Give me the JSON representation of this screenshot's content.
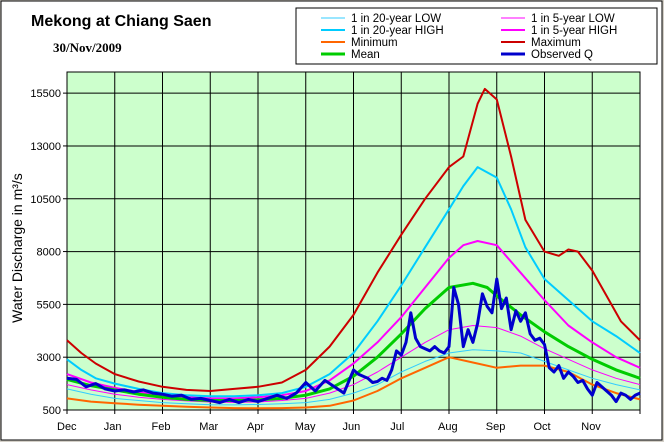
{
  "chart_data": {
    "type": "line",
    "title": "Mekong at Chiang Saen",
    "subtitle": "30/Nov/2009",
    "ylabel": "Water Discharge in m³/s",
    "xlabel": "",
    "ylim": [
      500,
      16500
    ],
    "yticks": [
      500,
      3000,
      5500,
      8000,
      10500,
      13000,
      15500
    ],
    "x_tick_labels": [
      "Dec",
      "Jan",
      "Feb",
      "Mar",
      "Apr",
      "May",
      "Jun",
      "Jul",
      "Aug",
      "Sep",
      "Oct",
      "Nov"
    ],
    "grid": true,
    "plot_background": "#ccffcc",
    "legend_position": "top-right",
    "series": [
      {
        "name": "1 in 20-year LOW",
        "color": "#33ccff",
        "width": 1,
        "x": [
          0,
          0.5,
          1,
          1.5,
          2,
          2.5,
          3,
          3.5,
          4,
          4.5,
          5,
          5.5,
          6,
          6.5,
          7,
          7.5,
          8,
          8.5,
          9,
          9.5,
          10,
          10.5,
          11,
          11.5,
          12
        ],
        "values": [
          1500,
          1250,
          1050,
          950,
          850,
          800,
          750,
          740,
          760,
          800,
          850,
          1000,
          1300,
          1700,
          2300,
          2800,
          3200,
          3350,
          3300,
          3200,
          2800,
          2400,
          2000,
          1700,
          1450
        ]
      },
      {
        "name": "1 in 5-year LOW",
        "color": "#ff00ff",
        "width": 1,
        "x": [
          0,
          0.5,
          1,
          1.5,
          2,
          2.5,
          3,
          3.5,
          4,
          4.5,
          5,
          5.5,
          6,
          6.5,
          7,
          7.5,
          8,
          8.5,
          9,
          9.5,
          10,
          10.5,
          11,
          11.5,
          12
        ],
        "values": [
          1700,
          1450,
          1250,
          1100,
          1000,
          930,
          880,
          860,
          880,
          950,
          1050,
          1300,
          1700,
          2300,
          3000,
          3700,
          4300,
          4500,
          4400,
          4000,
          3400,
          2900,
          2400,
          2000,
          1700
        ]
      },
      {
        "name": "1 in 20-year HIGH",
        "color": "#00ccff",
        "width": 2,
        "x": [
          0,
          0.3,
          0.6,
          1,
          1.5,
          2,
          2.5,
          3,
          3.5,
          4,
          4.5,
          5,
          5.5,
          6,
          6.5,
          7,
          7.5,
          8,
          8.3,
          8.6,
          9,
          9.3,
          9.6,
          10,
          10.5,
          11,
          11.5,
          12
        ],
        "values": [
          2900,
          2400,
          2000,
          1750,
          1500,
          1300,
          1200,
          1150,
          1150,
          1200,
          1300,
          1600,
          2200,
          3200,
          4700,
          6400,
          8200,
          10000,
          11100,
          12000,
          11500,
          10000,
          8200,
          6700,
          5700,
          4700,
          4000,
          3200
        ]
      },
      {
        "name": "1 in 5-year HIGH",
        "color": "#ff00ff",
        "width": 2,
        "x": [
          0,
          0.5,
          1,
          1.5,
          2,
          2.5,
          3,
          3.5,
          4,
          4.5,
          5,
          5.5,
          6,
          6.5,
          7,
          7.5,
          8,
          8.3,
          8.6,
          9,
          9.5,
          10,
          10.5,
          11,
          11.5,
          12
        ],
        "values": [
          2200,
          1800,
          1550,
          1350,
          1200,
          1100,
          1050,
          1050,
          1100,
          1200,
          1400,
          1900,
          2700,
          3700,
          4900,
          6300,
          7700,
          8300,
          8500,
          8300,
          7000,
          5700,
          4500,
          3700,
          3000,
          2500
        ]
      },
      {
        "name": "Minimum",
        "color": "#ff6600",
        "width": 2,
        "x": [
          0,
          0.5,
          1,
          1.5,
          2,
          2.5,
          3,
          3.5,
          4,
          4.5,
          5,
          5.5,
          6,
          6.5,
          7,
          7.5,
          8,
          8.5,
          9,
          9.5,
          10,
          10.5,
          11,
          11.5,
          12
        ],
        "values": [
          1050,
          900,
          820,
          750,
          700,
          650,
          620,
          590,
          580,
          590,
          620,
          700,
          950,
          1400,
          2000,
          2500,
          3000,
          2750,
          2500,
          2600,
          2600,
          2300,
          1700,
          1300,
          1000
        ]
      },
      {
        "name": "Maximum",
        "color": "#cc0000",
        "width": 2,
        "x": [
          0,
          0.3,
          0.6,
          1,
          1.5,
          2,
          2.5,
          3,
          3.5,
          4,
          4.5,
          5,
          5.5,
          6,
          6.5,
          7,
          7.5,
          8,
          8.3,
          8.6,
          8.75,
          9,
          9.3,
          9.6,
          10,
          10.3,
          10.5,
          10.7,
          11,
          11.3,
          11.6,
          12
        ],
        "values": [
          3800,
          3200,
          2700,
          2200,
          1850,
          1600,
          1450,
          1400,
          1500,
          1600,
          1800,
          2400,
          3500,
          5000,
          7000,
          8800,
          10500,
          12000,
          12500,
          15000,
          15700,
          15200,
          12500,
          9500,
          8000,
          7800,
          8100,
          8000,
          7100,
          5900,
          4700,
          3800
        ]
      },
      {
        "name": "Mean",
        "color": "#00cc00",
        "width": 3,
        "x": [
          0,
          0.5,
          1,
          1.5,
          2,
          2.5,
          3,
          3.5,
          4,
          4.5,
          5,
          5.5,
          6,
          6.5,
          7,
          7.5,
          8,
          8.5,
          8.8,
          9,
          9.5,
          10,
          10.5,
          11,
          11.5,
          12
        ],
        "values": [
          1950,
          1650,
          1450,
          1250,
          1100,
          1000,
          950,
          950,
          980,
          1050,
          1200,
          1500,
          2100,
          3000,
          4100,
          5300,
          6300,
          6500,
          6300,
          5900,
          5000,
          4200,
          3500,
          2900,
          2400,
          2000
        ]
      },
      {
        "name": "Observed Q",
        "color": "#0000cc",
        "width": 3,
        "x": [
          0,
          0.2,
          0.4,
          0.6,
          0.8,
          1.0,
          1.2,
          1.4,
          1.6,
          1.8,
          2.0,
          2.2,
          2.4,
          2.6,
          2.8,
          3.0,
          3.2,
          3.4,
          3.6,
          3.8,
          4.0,
          4.2,
          4.4,
          4.6,
          4.8,
          5.0,
          5.2,
          5.4,
          5.6,
          5.8,
          6.0,
          6.1,
          6.2,
          6.3,
          6.4,
          6.5,
          6.6,
          6.7,
          6.8,
          6.9,
          7.0,
          7.1,
          7.2,
          7.3,
          7.4,
          7.5,
          7.6,
          7.7,
          7.8,
          7.9,
          8.0,
          8.1,
          8.2,
          8.3,
          8.4,
          8.5,
          8.6,
          8.7,
          8.8,
          8.9,
          9.0,
          9.1,
          9.2,
          9.3,
          9.4,
          9.5,
          9.6,
          9.7,
          9.8,
          9.9,
          10.0,
          10.1,
          10.2,
          10.3,
          10.4,
          10.5,
          10.6,
          10.7,
          10.8,
          10.9,
          11.0,
          11.1,
          11.2,
          11.3,
          11.4,
          11.5,
          11.6,
          11.7,
          11.8,
          11.9,
          12.0
        ],
        "values": [
          2000,
          1950,
          1600,
          1750,
          1500,
          1400,
          1450,
          1350,
          1450,
          1300,
          1250,
          1150,
          1200,
          1000,
          1050,
          950,
          850,
          1000,
          850,
          1000,
          900,
          1050,
          1200,
          1050,
          1300,
          1800,
          1400,
          1900,
          1600,
          1300,
          2400,
          2200,
          2100,
          2000,
          1800,
          1850,
          2000,
          1900,
          2400,
          3300,
          3100,
          3700,
          5100,
          3900,
          3500,
          3400,
          3300,
          3500,
          3300,
          3200,
          3500,
          6300,
          5500,
          3500,
          4300,
          3700,
          4600,
          6000,
          5400,
          5100,
          6700,
          5300,
          5800,
          4300,
          5200,
          4700,
          5100,
          4100,
          3800,
          3900,
          3600,
          2500,
          2300,
          2600,
          2000,
          2300,
          2100,
          1800,
          1900,
          1500,
          1200,
          1800,
          1600,
          1400,
          1200,
          900,
          1300,
          1200,
          1000,
          1200,
          1300
        ]
      }
    ]
  }
}
